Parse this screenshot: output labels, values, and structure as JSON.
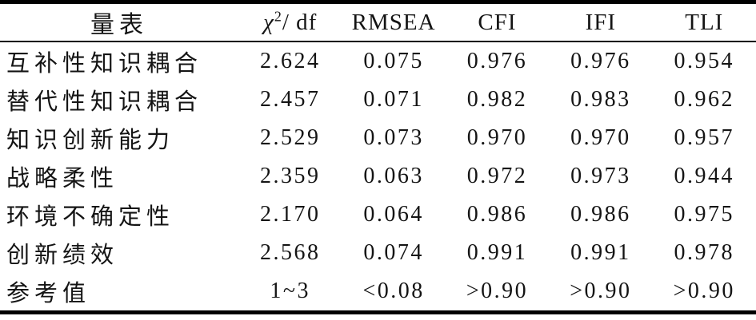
{
  "page": {
    "background_color": "#ffffff",
    "text_color": "#141414",
    "rule_color": "#000000"
  },
  "table": {
    "header": {
      "scale": "量表",
      "chi_base": "χ",
      "chi_sup": "2",
      "chi_rest": "/ df",
      "rmsea": "RMSEA",
      "cfi": "CFI",
      "ifi": "IFI",
      "tli": "TLI"
    },
    "rows": [
      {
        "label": "互补性知识耦合",
        "chi_df": "2.624",
        "rmsea": "0.075",
        "cfi": "0.976",
        "ifi": "0.976",
        "tli": "0.954"
      },
      {
        "label": "替代性知识耦合",
        "chi_df": "2.457",
        "rmsea": "0.071",
        "cfi": "0.982",
        "ifi": "0.983",
        "tli": "0.962"
      },
      {
        "label": "知识创新能力",
        "chi_df": "2.529",
        "rmsea": "0.073",
        "cfi": "0.970",
        "ifi": "0.970",
        "tli": "0.957"
      },
      {
        "label": "战略柔性",
        "chi_df": "2.359",
        "rmsea": "0.063",
        "cfi": "0.972",
        "ifi": "0.973",
        "tli": "0.944"
      },
      {
        "label": "环境不确定性",
        "chi_df": "2.170",
        "rmsea": "0.064",
        "cfi": "0.986",
        "ifi": "0.986",
        "tli": "0.975"
      },
      {
        "label": "创新绩效",
        "chi_df": "2.568",
        "rmsea": "0.074",
        "cfi": "0.991",
        "ifi": "0.991",
        "tli": "0.978"
      },
      {
        "label": "参考值",
        "chi_df": "1~3",
        "rmsea": "<0.08",
        "cfi": ">0.90",
        "ifi": ">0.90",
        "tli": ">0.90"
      }
    ]
  }
}
